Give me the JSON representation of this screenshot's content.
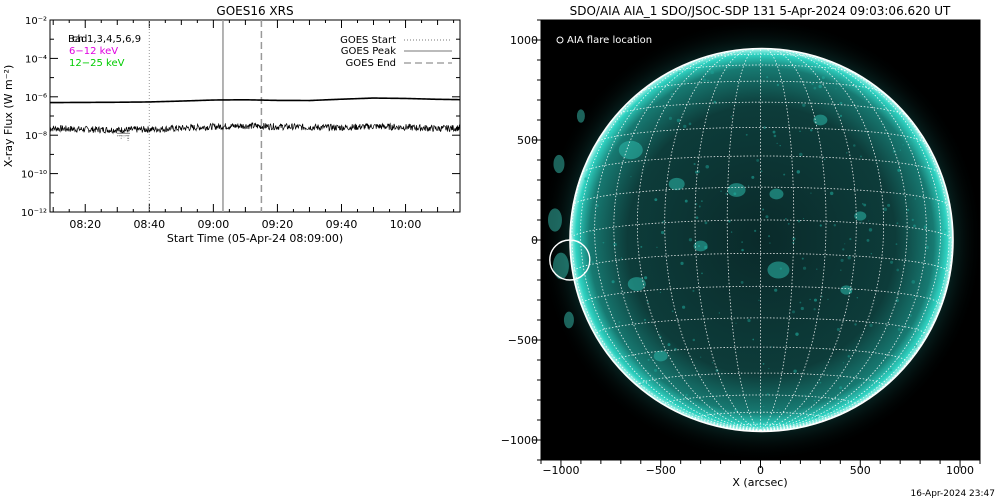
{
  "left_panel": {
    "title": "GOES16 XRS",
    "ylabel": "X-ray Flux (W m⁻²)",
    "xlabel": "Start Time (05-Apr-24 08:09:00)",
    "channel_label": "Bad",
    "channel_label_suffix": "ch 1,3,4,5,6,9",
    "energy_1": "6−12 keV",
    "energy_2": "12−25 keV",
    "legend": [
      "GOES Start",
      "GOES Peak",
      "GOES End"
    ]
  },
  "right_panel": {
    "title": "SDO/AIA AIA_1 SDO/JSOC-SDP 131  5-Apr-2024 09:03:06.620 UT",
    "legend_text": "AIA flare location",
    "xlabel": "X (arcsec)"
  },
  "footer_timestamp": "16-Apr-2024 23:47",
  "colors": {
    "energy_1": "#e000e0",
    "energy_2": "#00cc00",
    "aia_teal": "#1fd6c6"
  },
  "chart_data": [
    {
      "type": "line",
      "title": "GOES16 XRS",
      "xlabel": "Start Time (05-Apr-24 08:09:00)",
      "ylabel": "X-ray Flux (W m⁻²)",
      "y_scale": "log",
      "ylim": [
        1e-12,
        0.01
      ],
      "xlim": [
        "08:09",
        "10:17"
      ],
      "x_ticks": [
        "08:20",
        "08:40",
        "09:00",
        "09:20",
        "09:40",
        "10:00"
      ],
      "y_ticks": [
        "10⁻¹²",
        "10⁻¹⁰",
        "10⁻⁸",
        "10⁻⁶",
        "10⁻⁴",
        "10⁻²"
      ],
      "legend_placement": "top-right",
      "series": [
        {
          "name": "6−12 keV",
          "x": [
            "08:09",
            "08:20",
            "08:30",
            "08:40",
            "08:50",
            "09:00",
            "09:10",
            "09:20",
            "09:30",
            "09:40",
            "09:50",
            "10:00",
            "10:10",
            "10:17"
          ],
          "values": [
            5e-07,
            5.1e-07,
            5.2e-07,
            5.4e-07,
            6e-07,
            6.8e-07,
            7e-07,
            6.5e-07,
            6.4e-07,
            7.5e-07,
            8.6e-07,
            8.2e-07,
            7.4e-07,
            7.1e-07
          ]
        },
        {
          "name": "12−25 keV",
          "x": [
            "08:09",
            "08:20",
            "08:30",
            "08:40",
            "08:50",
            "09:00",
            "09:10",
            "09:20",
            "09:30",
            "09:40",
            "09:50",
            "10:00",
            "10:10",
            "10:17"
          ],
          "values": [
            2.3e-08,
            2e-08,
            1.9e-08,
            2e-08,
            2.3e-08,
            2.8e-08,
            3.1e-08,
            2.8e-08,
            2.6e-08,
            2.5e-08,
            2.9e-08,
            2.6e-08,
            2.2e-08,
            2.4e-08
          ]
        }
      ],
      "markers": {
        "goes_start": "08:40",
        "goes_peak": "09:03",
        "goes_end": "09:15"
      }
    },
    {
      "type": "image",
      "title": "SDO/AIA AIA_1 SDO/JSOC-SDP 131  5-Apr-2024 09:03:06.620 UT",
      "xlabel": "X (arcsec)",
      "xlim": [
        -1100,
        1100
      ],
      "ylim": [
        -1100,
        1100
      ],
      "x_ticks": [
        -1000,
        -500,
        0,
        500,
        1000
      ],
      "y_ticks": [
        1000,
        500,
        0,
        -500,
        -1000
      ],
      "solar_radius_arcsec": 960,
      "flare_location": {
        "x": -960,
        "y": -100,
        "radius": 100
      }
    }
  ]
}
